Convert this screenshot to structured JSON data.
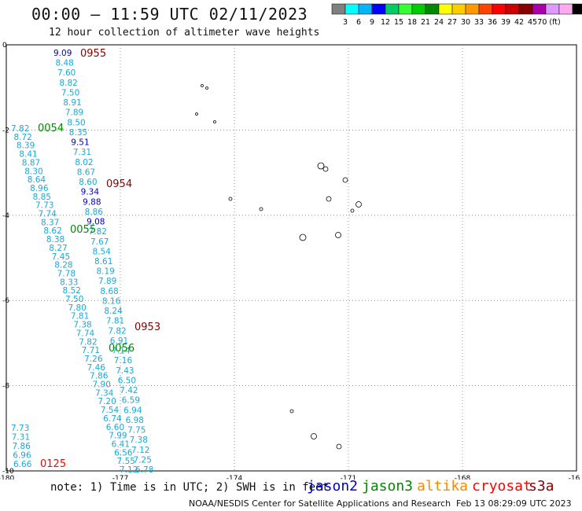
{
  "header": {
    "title": "00:00 – 11:59 UTC 02/11/2023",
    "subtitle": "12 hour collection of altimeter wave heights"
  },
  "legend": {
    "colors": [
      "#808080",
      "#00ffff",
      "#00b4ff",
      "#0000ff",
      "#00cc66",
      "#33ff33",
      "#00cc00",
      "#008800",
      "#ffff00",
      "#ffcc00",
      "#ff9900",
      "#ff4400",
      "#ff0000",
      "#cc0000",
      "#880000",
      "#aa00aa",
      "#dd99ff",
      "#ffaaee",
      "#000000"
    ],
    "labels": [
      "3",
      "6",
      "9",
      "12",
      "15",
      "18",
      "21",
      "24",
      "27",
      "30",
      "33",
      "36",
      "39",
      "42",
      "45",
      "70 (ft)"
    ]
  },
  "map": {
    "x_ticks": [
      "-180",
      "-177",
      "-174",
      "-171",
      "-168",
      "-16"
    ],
    "y_ticks": [
      "0",
      "-2",
      "-4",
      "-6",
      "-8",
      "-10"
    ],
    "pass_labels": [
      {
        "text": "0955",
        "color": "#880000"
      },
      {
        "text": "0054",
        "color": "#008800"
      },
      {
        "text": "0954",
        "color": "#880000"
      },
      {
        "text": "0055",
        "color": "#008800"
      },
      {
        "text": "0953",
        "color": "#880000"
      },
      {
        "text": "0056",
        "color": "#008800"
      },
      {
        "text": "0125",
        "color": "#ff0000"
      }
    ],
    "track1": [
      "9.09",
      "8.48",
      "7.60",
      "8.82",
      "7.50",
      "8.91",
      "7.89",
      "8.50",
      "8.35",
      "9.51",
      "7.31",
      "8.02",
      "8.67",
      "8.60",
      "9.34",
      "9.88",
      "8.86",
      "9.08",
      "7.82",
      "7.67",
      "8.54",
      "8.61",
      "8.19",
      "7.89",
      "8.68",
      "8.16",
      "8.24",
      "7.81",
      "7.82",
      "6.91",
      "7.14",
      "7.16",
      "7.43",
      "6.50",
      "7.42",
      "6.59",
      "6.94",
      "6.98",
      "7.75",
      "7.38",
      "7.12",
      "7.25",
      "6.78"
    ],
    "track2": [
      "7.82",
      "8.72",
      "8.39",
      "8.41",
      "8.87",
      "8.30",
      "8.64",
      "8.96",
      "8.85",
      "7.73",
      "7.74",
      "8.37",
      "8.62",
      "8.38",
      "8.27",
      "7.45",
      "8.28",
      "7.78",
      "8.33",
      "8.52",
      "7.50",
      "7.80",
      "7.81",
      "7.38",
      "7.74",
      "7.82",
      "7.71",
      "7.26",
      "7.46",
      "7.86",
      "7.90",
      "7.34",
      "7.20",
      "7.54",
      "6.74",
      "6.60",
      "7.99",
      "6.41",
      "6.56",
      "7.55",
      "7.12"
    ],
    "track3": [
      "7.73",
      "7.31",
      "7.86",
      "6.96",
      "6.66"
    ]
  },
  "footer": {
    "note": "note: 1) Time is in UTC; 2) SWH is in feet",
    "satellites": [
      {
        "name": "jason2",
        "color": "#0000cc"
      },
      {
        "name": "jason3",
        "color": "#008800"
      },
      {
        "name": "altika",
        "color": "#ff8800"
      },
      {
        "name": "cryosat",
        "color": "#ff0000"
      },
      {
        "name": "s3a",
        "color": "#880000"
      }
    ],
    "credit": "NOAA/NESDIS Center for Satellite Applications and Research",
    "timestamp": "Feb 13 08:29:09 UTC 2023"
  }
}
